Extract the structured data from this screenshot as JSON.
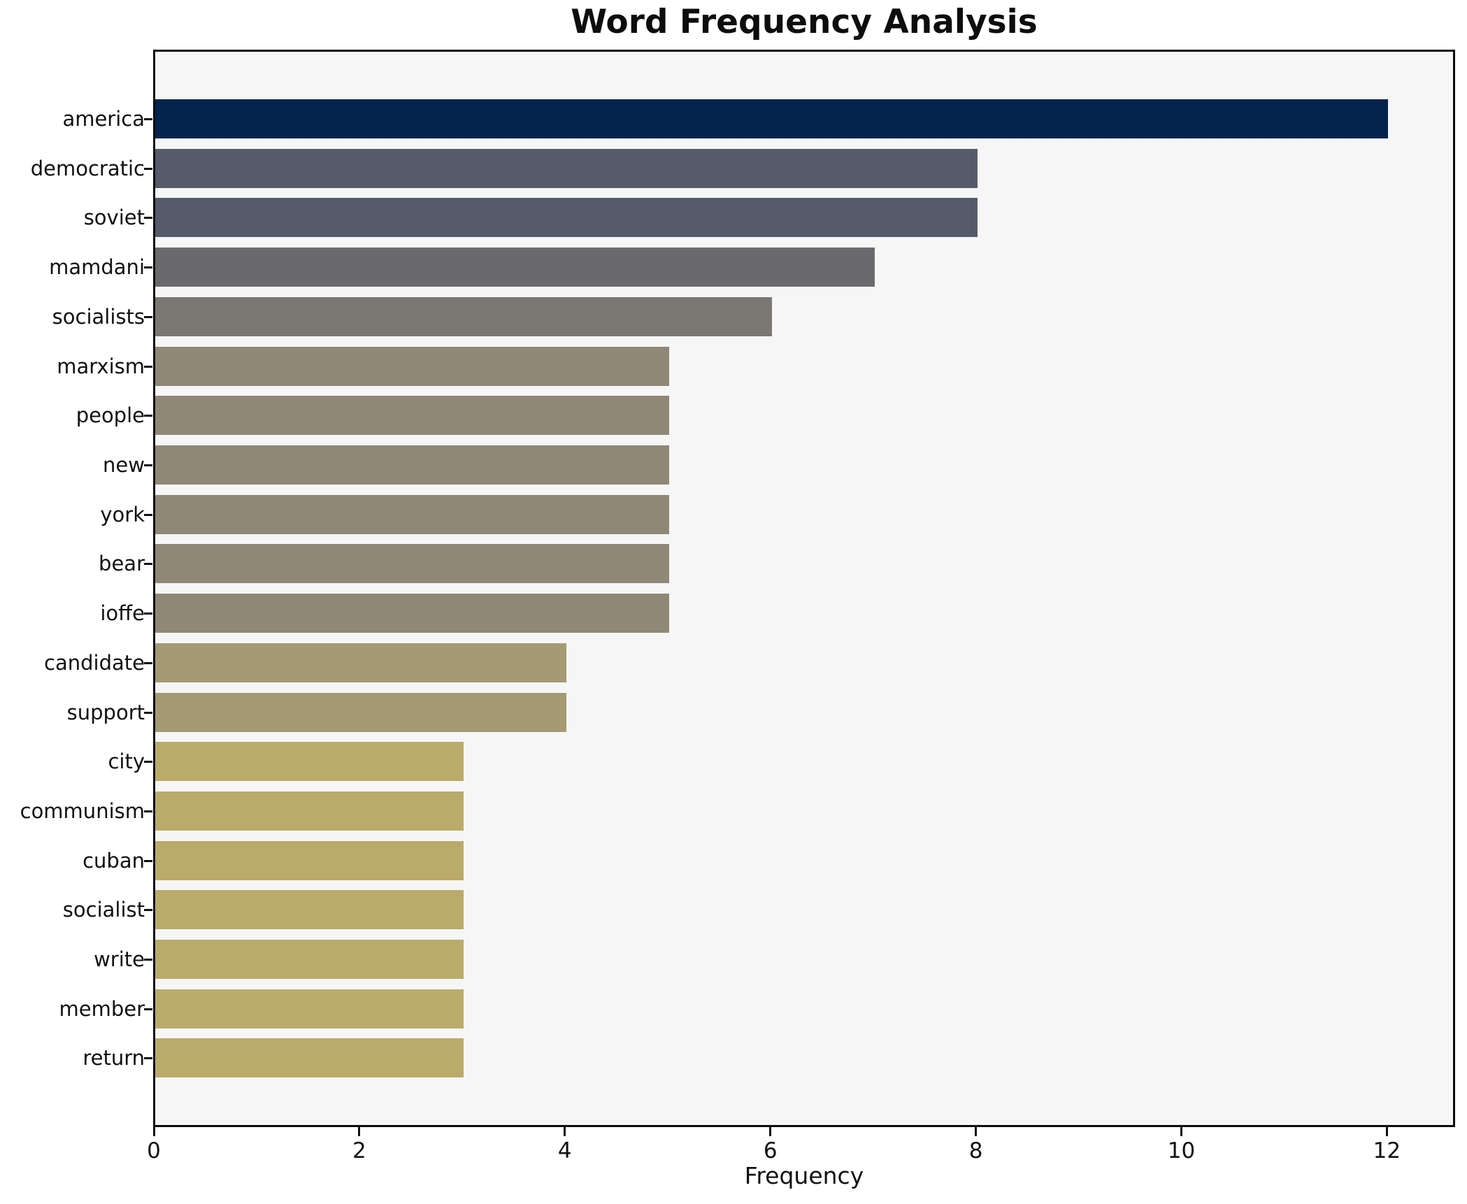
{
  "title": "Word Frequency Analysis",
  "axes": {
    "xlabel": "Frequency",
    "x_tick_labels": [
      "0",
      "2",
      "4",
      "6",
      "8",
      "10",
      "12"
    ]
  },
  "colors": {
    "plot_background": "#f6f6f6",
    "figure_background": "#ffffff",
    "spine": "#0c0c0c",
    "text": "#111111"
  },
  "chart_data": {
    "type": "bar",
    "orientation": "horizontal",
    "title": "Word Frequency Analysis",
    "xlabel": "Frequency",
    "ylabel": "",
    "categories": [
      "america",
      "democratic",
      "soviet",
      "mamdani",
      "socialists",
      "marxism",
      "people",
      "new",
      "york",
      "bear",
      "ioffe",
      "candidate",
      "support",
      "city",
      "communism",
      "cuban",
      "socialist",
      "write",
      "member",
      "return"
    ],
    "values": [
      12,
      8,
      8,
      7,
      6,
      5,
      5,
      5,
      5,
      5,
      5,
      4,
      4,
      3,
      3,
      3,
      3,
      3,
      3,
      3
    ],
    "bar_colors": [
      "#02234e",
      "#565b6a",
      "#565b6a",
      "#6a6a6d",
      "#7b7874",
      "#8f8876",
      "#8f8876",
      "#8f8876",
      "#8f8876",
      "#8f8876",
      "#8f8876",
      "#a49a73",
      "#a49a73",
      "#baab6b",
      "#baab6b",
      "#baab6b",
      "#baab6b",
      "#baab6b",
      "#baab6b",
      "#baab6b"
    ],
    "xticks": [
      0,
      2,
      4,
      6,
      8,
      10,
      12
    ],
    "xlim": [
      0,
      12.63
    ],
    "grid": false,
    "legend": false
  }
}
